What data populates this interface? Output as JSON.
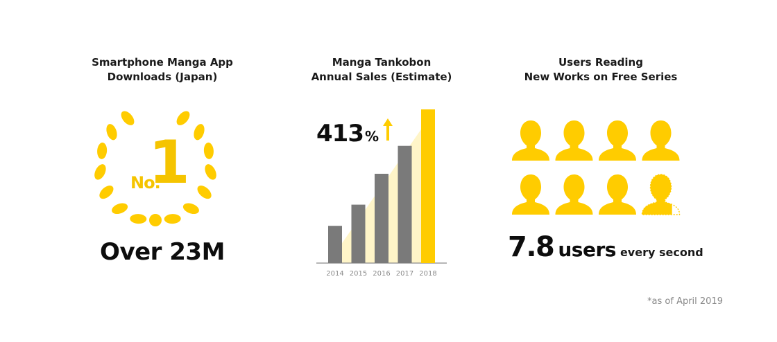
{
  "sections": [
    {
      "title_lines": [
        "Smartphone Manga App",
        "Downloads (Japan)"
      ],
      "rank_prefix": "No.",
      "rank_number": "1",
      "headline": "Over 23M",
      "icon": "laurel-wreath-icon"
    },
    {
      "title_lines": [
        "Manga Tankobon",
        "Annual Sales (Estimate)"
      ],
      "growth_number": "413",
      "growth_unit": "%",
      "icon": "up-arrow-icon"
    },
    {
      "title_lines": [
        "Users Reading",
        "New Works on Free Series"
      ],
      "rate_number": "7.8",
      "rate_unit": "users",
      "rate_suffix": "every second",
      "icon": "person-icon",
      "person_icon_count": 7.8
    }
  ],
  "footnote": "*as of April 2019",
  "colors": {
    "accent": "#FFCC00",
    "bar_gray": "#7a7a7a",
    "highlight_bar": "#FFCC00",
    "triangle_fill": "#FFF5C8"
  },
  "chart_data": {
    "type": "bar",
    "categories": [
      "2014",
      "2015",
      "2016",
      "2017",
      "2018"
    ],
    "values": [
      100,
      157,
      240,
      315,
      413
    ],
    "highlight_index": 4,
    "ylim": [
      0,
      413
    ]
  }
}
